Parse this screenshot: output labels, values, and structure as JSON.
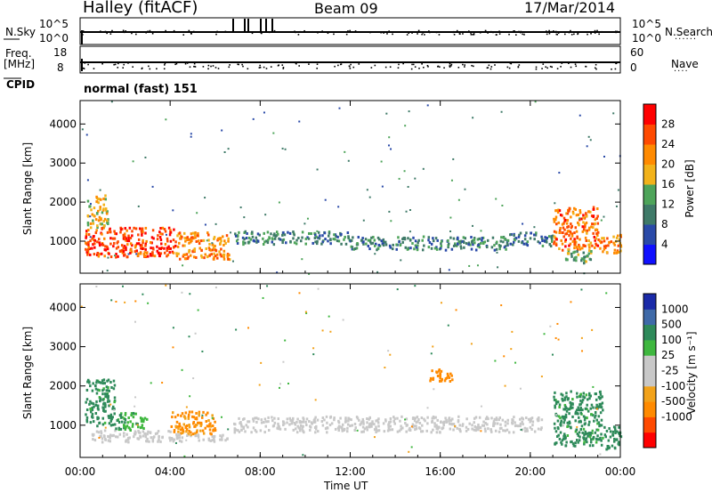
{
  "header": {
    "station": "Halley (fitACF)",
    "beam": "Beam 09",
    "date": "17/Mar/2014"
  },
  "top_panels": {
    "nsky_label": "N.Sky",
    "nsky_ticks": [
      "10^5",
      "10^0"
    ],
    "nsearch_label": "N.Search",
    "nsearch_ticks": [
      "10^5",
      "10^0"
    ],
    "freq_label": "Freq.",
    "freq_unit": "[MHz]",
    "freq_ticks": [
      "18",
      "8"
    ],
    "nave_label": "Nave",
    "nave_ticks": [
      "60",
      "0"
    ],
    "cpid_label": "CPID",
    "cpid_value": "normal (fast) 151"
  },
  "colors": {
    "power_scale": [
      "#1010ff",
      "#2a4aa8",
      "#3f7a68",
      "#4ea45a",
      "#f2b21a",
      "#ff8a00",
      "#ff4a00",
      "#ff0000"
    ],
    "velocity_scale": [
      "#ff0000",
      "#ff4a00",
      "#ff8a00",
      "#f2a21a",
      "#c8c8c8",
      "#c8c8c8",
      "#3fb73f",
      "#2e8a5a",
      "#3f6aa8",
      "#1a2aa8"
    ]
  },
  "chart_data": [
    {
      "type": "heatmap",
      "title": "Power",
      "xlabel": "Time UT",
      "ylabel": "Slant Range [km]",
      "x_ticks": [
        "00:00",
        "04:00",
        "08:00",
        "12:00",
        "16:00",
        "20:00",
        "00:00"
      ],
      "xlim": [
        0,
        24
      ],
      "y_ticks": [
        "1000",
        "2000",
        "3000",
        "4000"
      ],
      "ylim": [
        180,
        4600
      ],
      "colorbar": {
        "label": "Power [dB]",
        "ticks": [
          "4",
          "8",
          "12",
          "16",
          "20",
          "24",
          "28"
        ],
        "range": [
          0,
          32
        ]
      },
      "regions": [
        {
          "t": [
            0.2,
            4.2
          ],
          "r": [
            620,
            1380
          ],
          "level": 27
        },
        {
          "t": [
            4.2,
            6.6
          ],
          "r": [
            560,
            1250
          ],
          "level": 22
        },
        {
          "t": [
            0.3,
            1.2
          ],
          "r": [
            1350,
            2200
          ],
          "level": 18
        },
        {
          "t": [
            6.8,
            12.0
          ],
          "r": [
            950,
            1280
          ],
          "level": 11
        },
        {
          "t": [
            12.0,
            19.0
          ],
          "r": [
            800,
            1150
          ],
          "level": 10
        },
        {
          "t": [
            19.0,
            21.0
          ],
          "r": [
            900,
            1250
          ],
          "level": 9
        },
        {
          "t": [
            21.0,
            23.0
          ],
          "r": [
            800,
            1900
          ],
          "level": 24
        },
        {
          "t": [
            23.0,
            24.0
          ],
          "r": [
            700,
            1200
          ],
          "level": 22
        },
        {
          "t": [
            21.5,
            22.8
          ],
          "r": [
            450,
            800
          ],
          "level": 13
        }
      ]
    },
    {
      "type": "heatmap",
      "title": "Velocity",
      "xlabel": "Time UT",
      "ylabel": "Slant Range [km]",
      "x_ticks": [
        "00:00",
        "04:00",
        "08:00",
        "12:00",
        "16:00",
        "20:00",
        "00:00"
      ],
      "xlim": [
        0,
        24
      ],
      "y_ticks": [
        "1000",
        "2000",
        "3000",
        "4000"
      ],
      "ylim": [
        180,
        4600
      ],
      "colorbar": {
        "label": "Velocity [m s⁻¹]",
        "ticks": [
          "1000",
          "500",
          "100",
          "25",
          "-25",
          "-100",
          "-500",
          "-1000"
        ],
        "range": [
          -1000,
          1000
        ]
      },
      "regions": [
        {
          "t": [
            0.2,
            1.5
          ],
          "r": [
            1000,
            2200
          ],
          "v": 150
        },
        {
          "t": [
            0.5,
            4.0
          ],
          "r": [
            600,
            900
          ],
          "v": 0
        },
        {
          "t": [
            1.5,
            3.0
          ],
          "r": [
            900,
            1350
          ],
          "v": 80
        },
        {
          "t": [
            4.0,
            6.0
          ],
          "r": [
            800,
            1400
          ],
          "v": -120
        },
        {
          "t": [
            4.0,
            6.5
          ],
          "r": [
            600,
            800
          ],
          "v": 0
        },
        {
          "t": [
            6.8,
            20.5
          ],
          "r": [
            850,
            1250
          ],
          "v": 0
        },
        {
          "t": [
            15.5,
            16.5
          ],
          "r": [
            2150,
            2450
          ],
          "v": -300
        },
        {
          "t": [
            21.0,
            23.2
          ],
          "r": [
            500,
            1900
          ],
          "v": 150
        },
        {
          "t": [
            23.2,
            24.0
          ],
          "r": [
            400,
            1000
          ],
          "v": 200
        }
      ]
    }
  ]
}
